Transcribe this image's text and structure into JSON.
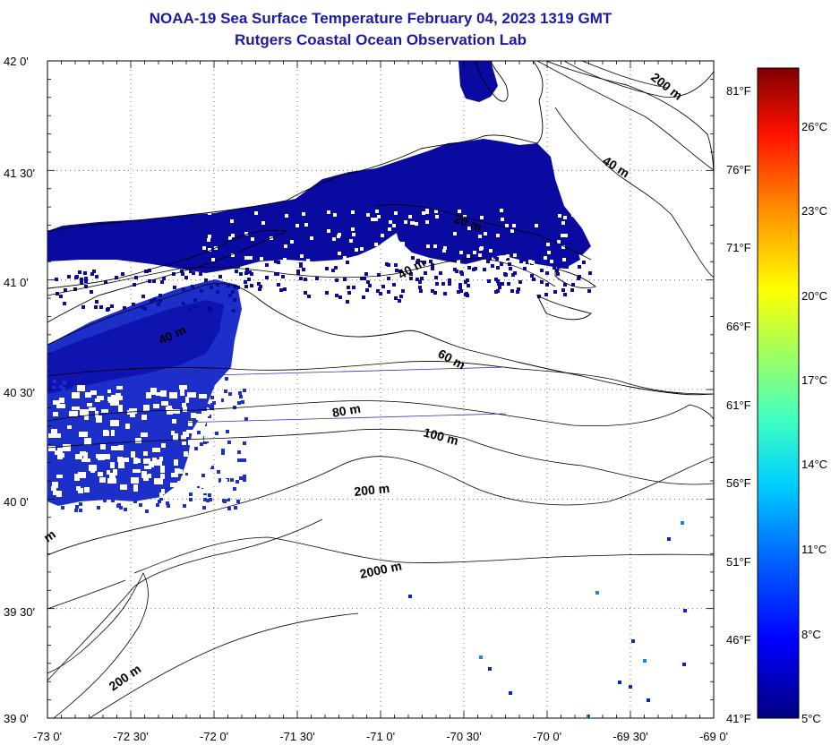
{
  "header": {
    "title": "NOAA-19 Sea Surface Temperature February 04, 2023 1319 GMT",
    "subtitle": "Rutgers Coastal Ocean Observation Lab"
  },
  "map": {
    "lat_ticks": [
      "42 0'",
      "41 30'",
      "41 0'",
      "40 30'",
      "40 0'",
      "39 30'",
      "39 0'"
    ],
    "lon_ticks": [
      "-73 0'",
      "-72 30'",
      "-72 0'",
      "-71 30'",
      "-71 0'",
      "-70 30'",
      "-70 0'",
      "-69 30'",
      "-69 0'"
    ],
    "fahrenheit_ticks": [
      "81°F",
      "76°F",
      "71°F",
      "66°F",
      "61°F",
      "56°F",
      "51°F",
      "46°F",
      "41°F"
    ],
    "contour_labels": [
      "200 m",
      "40 m",
      "20 m",
      "40 m",
      "40 m",
      "60 m",
      "80 m",
      "100 m",
      "200 m",
      "2000 m",
      "200 m",
      "m"
    ]
  },
  "colorbar": {
    "celsius_ticks": [
      "26°C",
      "23°C",
      "20°C",
      "17°C",
      "14°C",
      "11°C",
      "8°C",
      "5°C"
    ],
    "min_c": 5,
    "max_c": 28,
    "colors": [
      "#00007f",
      "#0000ff",
      "#0080ff",
      "#00ffff",
      "#80ff80",
      "#ffff00",
      "#ff8000",
      "#ff0000",
      "#7f0000"
    ]
  },
  "sst": {
    "dominant_color": "#0a0aa0",
    "dominant_color_alt": "#1c2fc8"
  }
}
